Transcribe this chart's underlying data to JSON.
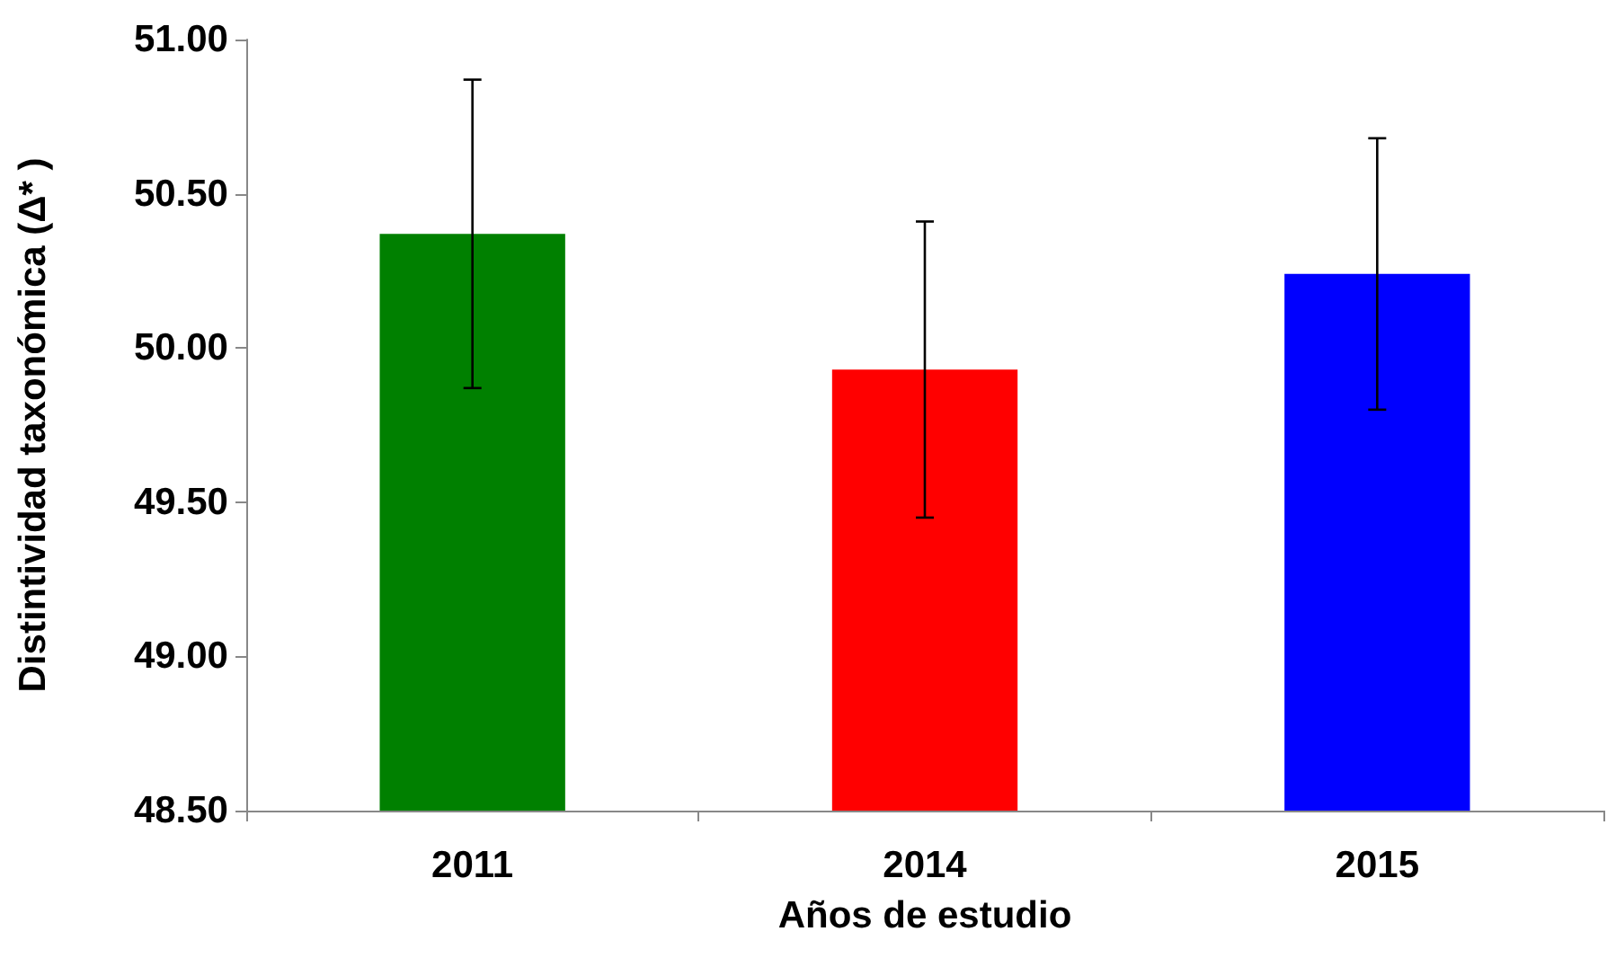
{
  "chart_data": {
    "type": "bar",
    "xlabel": "Años de estudio",
    "ylabel": "Distintividad taxonómica (Δ* )",
    "categories": [
      "2011",
      "2014",
      "2015"
    ],
    "values": [
      50.37,
      49.93,
      50.24
    ],
    "colors": [
      "#008000",
      "#ff0000",
      "#0000ff"
    ],
    "errors": [
      0.5,
      0.48,
      0.44
    ],
    "ylim": [
      48.5,
      51
    ],
    "yticks": [
      {
        "value": 48.5,
        "label": "48.50"
      },
      {
        "value": 49,
        "label": "49.00"
      },
      {
        "value": 49.5,
        "label": "49.50"
      },
      {
        "value": 50,
        "label": "50.00"
      },
      {
        "value": 50.5,
        "label": "50.50"
      },
      {
        "value": 51,
        "label": "51.00"
      }
    ],
    "grid": false
  }
}
